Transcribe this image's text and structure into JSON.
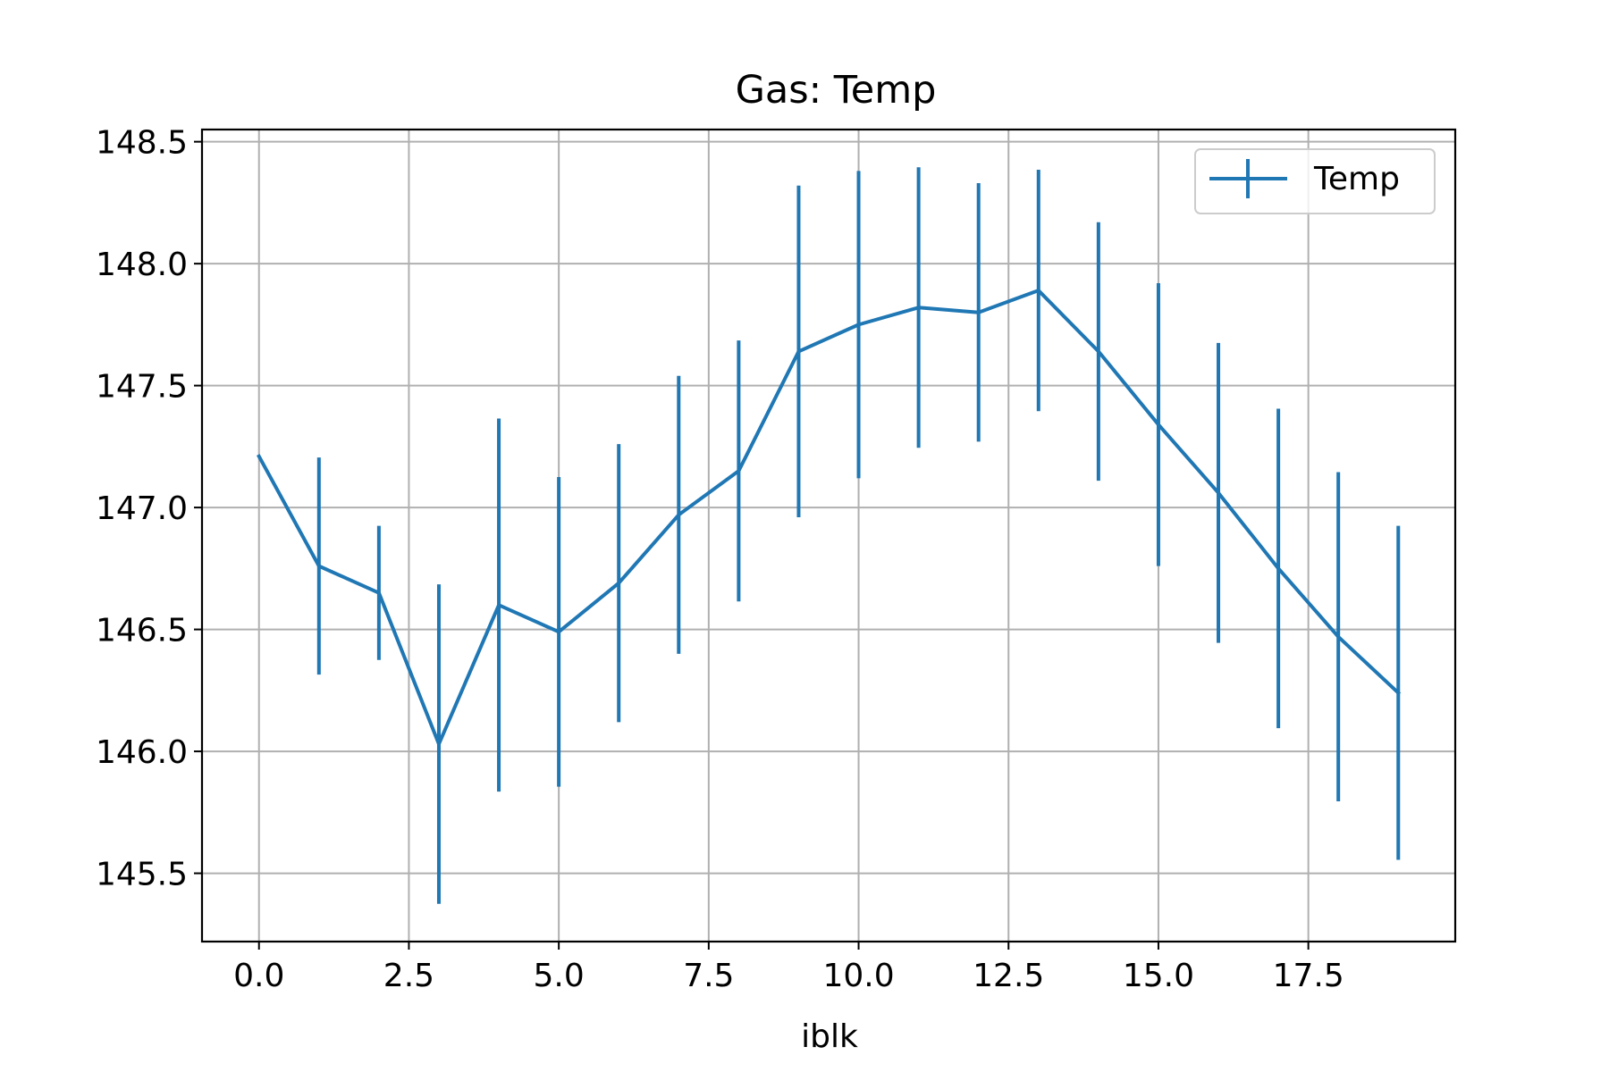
{
  "colors": {
    "series": "#1f77b4",
    "grid": "#b0b0b0",
    "axes": "#000000",
    "legend_border": "#cccccc",
    "background": "#ffffff"
  },
  "chart_data": {
    "type": "line",
    "title": "Gas: Temp",
    "xlabel": "iblk",
    "ylabel": "",
    "xlim": [
      -0.95,
      19.95
    ],
    "ylim": [
      145.22,
      148.55
    ],
    "grid": true,
    "legend_placement": "top-right",
    "x_ticks": [
      0.0,
      2.5,
      5.0,
      7.5,
      10.0,
      12.5,
      15.0,
      17.5
    ],
    "x_tick_labels": [
      "0.0",
      "2.5",
      "5.0",
      "7.5",
      "10.0",
      "12.5",
      "15.0",
      "17.5"
    ],
    "y_ticks": [
      145.5,
      146.0,
      146.5,
      147.0,
      147.5,
      148.0,
      148.5
    ],
    "y_tick_labels": [
      "145.5",
      "146.0",
      "146.5",
      "147.0",
      "147.5",
      "148.0",
      "148.5"
    ],
    "series": [
      {
        "name": "Temp",
        "error_bars": true,
        "x": [
          0,
          1,
          2,
          3,
          4,
          5,
          6,
          7,
          8,
          9,
          10,
          11,
          12,
          13,
          14,
          15,
          16,
          17,
          18,
          19
        ],
        "y": [
          147.21,
          146.76,
          146.65,
          146.03,
          146.6,
          146.49,
          146.69,
          146.97,
          147.15,
          147.64,
          147.75,
          147.82,
          147.8,
          147.89,
          147.64,
          147.34,
          147.06,
          146.75,
          146.47,
          146.24
        ],
        "yerr": [
          0.0,
          0.445,
          0.275,
          0.655,
          0.765,
          0.635,
          0.57,
          0.57,
          0.535,
          0.68,
          0.63,
          0.575,
          0.53,
          0.495,
          0.53,
          0.58,
          0.615,
          0.655,
          0.675,
          0.685
        ]
      }
    ]
  }
}
